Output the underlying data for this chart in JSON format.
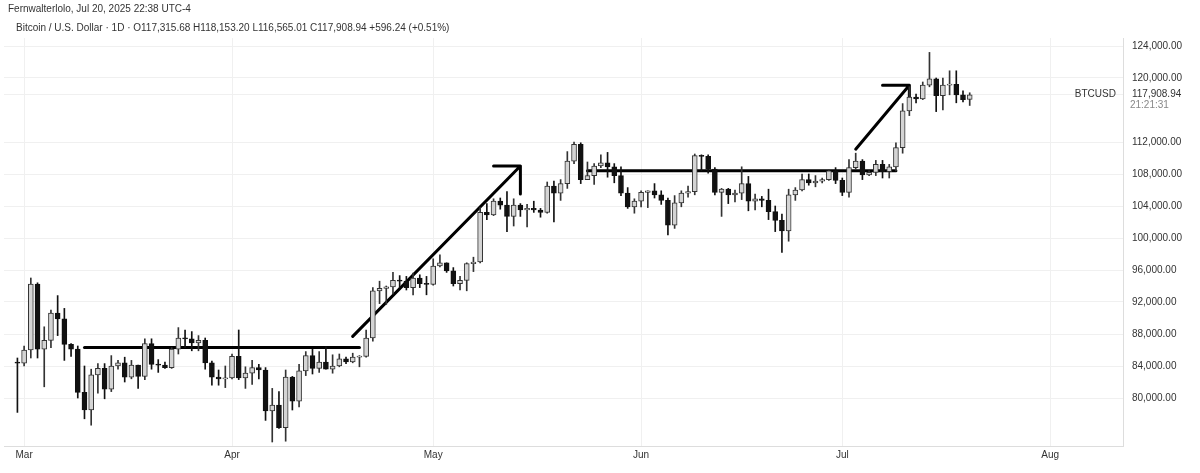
{
  "chart_data": {
    "type": "candlestick",
    "title": "Bitcoin / U.S. Dollar · 1D · O117,315.68 H118,153.20 L116,565.01 C117,908.94 +596.24 (+0.51%)",
    "subtitle": "Fernwalterlolo, Jul 20, 2025 22:38 UTC-4",
    "x": [
      "2025-02-28",
      "2025-03-01",
      "2025-03-02",
      "2025-03-03",
      "2025-03-04",
      "2025-03-05",
      "2025-03-06",
      "2025-03-07",
      "2025-03-08",
      "2025-03-09",
      "2025-03-10",
      "2025-03-11",
      "2025-03-12",
      "2025-03-13",
      "2025-03-14",
      "2025-03-15",
      "2025-03-16",
      "2025-03-17",
      "2025-03-18",
      "2025-03-19",
      "2025-03-20",
      "2025-03-21",
      "2025-03-22",
      "2025-03-23",
      "2025-03-24",
      "2025-03-25",
      "2025-03-26",
      "2025-03-27",
      "2025-03-28",
      "2025-03-29",
      "2025-03-30",
      "2025-03-31",
      "2025-04-01",
      "2025-04-02",
      "2025-04-03",
      "2025-04-04",
      "2025-04-05",
      "2025-04-06",
      "2025-04-07",
      "2025-04-08",
      "2025-04-09",
      "2025-04-10",
      "2025-04-11",
      "2025-04-12",
      "2025-04-13",
      "2025-04-14",
      "2025-04-15",
      "2025-04-16",
      "2025-04-17",
      "2025-04-18",
      "2025-04-19",
      "2025-04-20",
      "2025-04-21",
      "2025-04-22",
      "2025-04-23",
      "2025-04-24",
      "2025-04-25",
      "2025-04-26",
      "2025-04-27",
      "2025-04-28",
      "2025-04-29",
      "2025-04-30",
      "2025-05-01",
      "2025-05-02",
      "2025-05-03",
      "2025-05-04",
      "2025-05-05",
      "2025-05-06",
      "2025-05-07",
      "2025-05-08",
      "2025-05-09",
      "2025-05-10",
      "2025-05-11",
      "2025-05-12",
      "2025-05-13",
      "2025-05-14",
      "2025-05-15",
      "2025-05-16",
      "2025-05-17",
      "2025-05-18",
      "2025-05-19",
      "2025-05-20",
      "2025-05-21",
      "2025-05-22",
      "2025-05-23",
      "2025-05-24",
      "2025-05-25",
      "2025-05-26",
      "2025-05-27",
      "2025-05-28",
      "2025-05-29",
      "2025-05-30",
      "2025-05-31",
      "2025-06-01",
      "2025-06-02",
      "2025-06-03",
      "2025-06-04",
      "2025-06-05",
      "2025-06-06",
      "2025-06-07",
      "2025-06-08",
      "2025-06-09",
      "2025-06-10",
      "2025-06-11",
      "2025-06-12",
      "2025-06-13",
      "2025-06-14",
      "2025-06-15",
      "2025-06-16",
      "2025-06-17",
      "2025-06-18",
      "2025-06-19",
      "2025-06-20",
      "2025-06-21",
      "2025-06-22",
      "2025-06-23",
      "2025-06-24",
      "2025-06-25",
      "2025-06-26",
      "2025-06-27",
      "2025-06-28",
      "2025-06-29",
      "2025-06-30",
      "2025-07-01",
      "2025-07-02",
      "2025-07-03",
      "2025-07-04",
      "2025-07-05",
      "2025-07-06",
      "2025-07-07",
      "2025-07-08",
      "2025-07-09",
      "2025-07-10",
      "2025-07-11",
      "2025-07-12",
      "2025-07-13",
      "2025-07-14",
      "2025-07-15",
      "2025-07-16",
      "2025-07-17",
      "2025-07-18",
      "2025-07-19",
      "2025-07-20"
    ],
    "ohlc": [
      [
        84400,
        85000,
        78200,
        84350
      ],
      [
        84350,
        86500,
        84000,
        86000
      ],
      [
        86000,
        95000,
        85000,
        94250
      ],
      [
        94250,
        94400,
        85000,
        86100
      ],
      [
        86100,
        88900,
        81400,
        87200
      ],
      [
        87200,
        91000,
        86300,
        90600
      ],
      [
        90600,
        92800,
        87800,
        89900
      ],
      [
        89900,
        91200,
        84700,
        86700
      ],
      [
        86700,
        86800,
        85200,
        86100
      ],
      [
        86100,
        86500,
        80000,
        80700
      ],
      [
        80700,
        84000,
        77400,
        78500
      ],
      [
        78500,
        83600,
        76600,
        82900
      ],
      [
        82900,
        84300,
        80600,
        83700
      ],
      [
        83700,
        84300,
        79900,
        81100
      ],
      [
        81100,
        85300,
        80800,
        84000
      ],
      [
        84000,
        84700,
        83600,
        84400
      ],
      [
        84400,
        85100,
        82000,
        82600
      ],
      [
        82600,
        84700,
        82400,
        84100
      ],
      [
        84100,
        84100,
        81200,
        82700
      ],
      [
        82700,
        87400,
        82300,
        86800
      ],
      [
        86800,
        87400,
        83600,
        84200
      ],
      [
        84200,
        84800,
        83200,
        84100
      ],
      [
        84100,
        84500,
        83700,
        83800
      ],
      [
        83800,
        86300,
        83700,
        86100
      ],
      [
        86100,
        88800,
        85500,
        87500
      ],
      [
        87500,
        88500,
        86300,
        87400
      ],
      [
        87400,
        88300,
        85900,
        86900
      ],
      [
        86900,
        87800,
        85900,
        87200
      ],
      [
        87200,
        87500,
        83600,
        84400
      ],
      [
        84400,
        84600,
        81600,
        82600
      ],
      [
        82600,
        83500,
        81600,
        82400
      ],
      [
        82400,
        84000,
        81300,
        82500
      ],
      [
        82500,
        85500,
        82400,
        85200
      ],
      [
        85200,
        88500,
        82300,
        82500
      ],
      [
        82500,
        83900,
        81200,
        83100
      ],
      [
        83100,
        84700,
        81700,
        83800
      ],
      [
        83800,
        84200,
        82400,
        83500
      ],
      [
        83500,
        83800,
        77200,
        78400
      ],
      [
        78400,
        81200,
        74500,
        79100
      ],
      [
        79100,
        80800,
        76200,
        76300
      ],
      [
        76300,
        83500,
        74600,
        82600
      ],
      [
        82600,
        82700,
        78500,
        79600
      ],
      [
        79600,
        84200,
        78900,
        83400
      ],
      [
        83400,
        85800,
        82800,
        85300
      ],
      [
        85300,
        86100,
        83000,
        83700
      ],
      [
        83700,
        85800,
        83200,
        84500
      ],
      [
        84500,
        86400,
        83600,
        83600
      ],
      [
        83600,
        85400,
        83100,
        84000
      ],
      [
        84000,
        85500,
        83900,
        84900
      ],
      [
        84900,
        85100,
        84300,
        84500
      ],
      [
        84500,
        85600,
        84400,
        85100
      ],
      [
        85100,
        85300,
        83900,
        85200
      ],
      [
        85200,
        88500,
        85100,
        87500
      ],
      [
        87500,
        93800,
        87100,
        93400
      ],
      [
        93400,
        94600,
        91800,
        93700
      ],
      [
        93700,
        94000,
        91700,
        93900
      ],
      [
        93900,
        95700,
        93000,
        94700
      ],
      [
        94700,
        95300,
        93800,
        94600
      ],
      [
        94600,
        95200,
        93500,
        93800
      ],
      [
        93800,
        95600,
        92900,
        95000
      ],
      [
        95000,
        95400,
        93800,
        94300
      ],
      [
        94300,
        95200,
        92900,
        94200
      ],
      [
        94200,
        97400,
        94100,
        96500
      ],
      [
        96500,
        97900,
        96400,
        96900
      ],
      [
        96900,
        96900,
        95700,
        95900
      ],
      [
        95900,
        96300,
        94000,
        94300
      ],
      [
        94300,
        95200,
        93500,
        94700
      ],
      [
        94700,
        96900,
        93400,
        96800
      ],
      [
        96800,
        97600,
        95800,
        97000
      ],
      [
        97000,
        103800,
        96900,
        103200
      ],
      [
        103200,
        104300,
        102300,
        102900
      ],
      [
        102900,
        104900,
        102800,
        104600
      ],
      [
        104600,
        105000,
        103600,
        104100
      ],
      [
        104100,
        105800,
        100800,
        102700
      ],
      [
        102700,
        104900,
        101500,
        104100
      ],
      [
        104100,
        104300,
        102700,
        103500
      ],
      [
        103500,
        104200,
        101400,
        103700
      ],
      [
        103700,
        104600,
        103200,
        103500
      ],
      [
        103500,
        103700,
        102600,
        103200
      ],
      [
        103200,
        107000,
        103100,
        106500
      ],
      [
        106500,
        107100,
        102000,
        105600
      ],
      [
        105600,
        107300,
        104700,
        106800
      ],
      [
        106800,
        110800,
        106200,
        109600
      ],
      [
        109600,
        112000,
        109300,
        111700
      ],
      [
        111700,
        111900,
        106800,
        107300
      ],
      [
        107300,
        109500,
        107300,
        107800
      ],
      [
        107800,
        109300,
        106700,
        109000
      ],
      [
        109000,
        110400,
        108800,
        109400
      ],
      [
        109400,
        110700,
        107600,
        108900
      ],
      [
        108900,
        109300,
        106900,
        107800
      ],
      [
        107800,
        108900,
        105300,
        105600
      ],
      [
        105600,
        106300,
        103700,
        103900
      ],
      [
        103900,
        104900,
        103100,
        104600
      ],
      [
        104600,
        105900,
        103900,
        105700
      ],
      [
        105700,
        105900,
        103800,
        105900
      ],
      [
        105900,
        106800,
        105000,
        105400
      ],
      [
        105400,
        105900,
        104200,
        104700
      ],
      [
        104700,
        105000,
        100400,
        101600
      ],
      [
        101600,
        105300,
        101200,
        104400
      ],
      [
        104400,
        105900,
        103900,
        105600
      ],
      [
        105600,
        106500,
        105100,
        105800
      ],
      [
        105800,
        110500,
        105400,
        110300
      ],
      [
        110300,
        110400,
        108400,
        110200
      ],
      [
        110200,
        110400,
        108100,
        108600
      ],
      [
        108600,
        108800,
        105400,
        105700
      ],
      [
        105700,
        106200,
        102700,
        106100
      ],
      [
        106100,
        106200,
        104300,
        105400
      ],
      [
        105400,
        106000,
        104500,
        105600
      ],
      [
        105600,
        108900,
        104800,
        106800
      ],
      [
        106800,
        107700,
        103400,
        104600
      ],
      [
        104600,
        105500,
        103500,
        104900
      ],
      [
        104900,
        105200,
        103900,
        104700
      ],
      [
        104700,
        106100,
        102300,
        103300
      ],
      [
        103300,
        104000,
        100800,
        102200
      ],
      [
        102200,
        103000,
        98200,
        100900
      ],
      [
        100900,
        106100,
        99600,
        105400
      ],
      [
        105400,
        106300,
        104700,
        106000
      ],
      [
        106000,
        108000,
        105900,
        107300
      ],
      [
        107300,
        108000,
        106600,
        106900
      ],
      [
        106900,
        107800,
        106400,
        107100
      ],
      [
        107100,
        107500,
        106900,
        107300
      ],
      [
        107300,
        108500,
        107200,
        108400
      ],
      [
        108400,
        108800,
        106800,
        107200
      ],
      [
        107200,
        107500,
        105300,
        105700
      ],
      [
        105700,
        109800,
        105100,
        108800
      ],
      [
        108800,
        110600,
        108600,
        109600
      ],
      [
        109600,
        109800,
        107300,
        107900
      ],
      [
        107900,
        108400,
        107800,
        108200
      ],
      [
        108200,
        109700,
        107800,
        109200
      ],
      [
        109200,
        109700,
        107500,
        108300
      ],
      [
        108300,
        109200,
        107500,
        108900
      ],
      [
        108900,
        111900,
        108400,
        111300
      ],
      [
        111300,
        116800,
        110600,
        115900
      ],
      [
        115900,
        118900,
        115300,
        117600
      ],
      [
        117600,
        118000,
        116900,
        117400
      ],
      [
        117400,
        119500,
        117300,
        119100
      ],
      [
        119100,
        123200,
        118900,
        119900
      ],
      [
        119900,
        120000,
        115800,
        117800
      ],
      [
        117800,
        120000,
        116000,
        119100
      ],
      [
        119100,
        120900,
        117900,
        119200
      ],
      [
        119200,
        120900,
        116900,
        117900
      ],
      [
        117900,
        118400,
        117000,
        117300
      ],
      [
        117315.68,
        118153.2,
        116565.01,
        117908.94
      ]
    ],
    "series": [
      {
        "type": "line",
        "color": "#000000",
        "x": [
          "2025-03-10",
          "2025-04-20"
        ],
        "values": [
          86300,
          86300
        ]
      },
      {
        "type": "line",
        "color": "#000000",
        "x": [
          "2025-04-19",
          "2025-05-14",
          "2025-05-10",
          "2025-05-14",
          "2025-05-14"
        ],
        "values": [
          87700,
          109000,
          109000,
          109000,
          105500
        ]
      },
      {
        "type": "line",
        "color": "#000000",
        "x": [
          "2025-05-24",
          "2025-07-09"
        ],
        "values": [
          108400,
          108400
        ]
      },
      {
        "type": "line",
        "color": "#000000",
        "x": [
          "2025-07-03",
          "2025-07-11",
          "2025-07-07",
          "2025-07-11",
          "2025-07-11"
        ],
        "values": [
          111100,
          119100,
          119100,
          119100,
          116200
        ]
      }
    ],
    "xlim": [
      "2025-02-26",
      "2025-08-12"
    ],
    "xticks": [
      {
        "value": "2025-03-01",
        "label": "Mar"
      },
      {
        "value": "2025-04-01",
        "label": "Apr"
      },
      {
        "value": "2025-05-01",
        "label": "May"
      },
      {
        "value": "2025-06-01",
        "label": "Jun"
      },
      {
        "value": "2025-07-01",
        "label": "Jul"
      },
      {
        "value": "2025-08-01",
        "label": "Aug"
      }
    ],
    "ylim": [
      74000,
      125000
    ],
    "yticks": [
      {
        "value": 80000,
        "label": "80,000.00"
      },
      {
        "value": 84000,
        "label": "84,000.00"
      },
      {
        "value": 88000,
        "label": "88,000.00"
      },
      {
        "value": 92000,
        "label": "92,000.00"
      },
      {
        "value": 96000,
        "label": "96,000.00"
      },
      {
        "value": 100000,
        "label": "100,000.00"
      },
      {
        "value": 104000,
        "label": "104,000.00"
      },
      {
        "value": 108000,
        "label": "108,000.00"
      },
      {
        "value": 112000,
        "label": "112,000.00"
      },
      {
        "value": 117908.94,
        "label": "117,908.94"
      },
      {
        "value": 120000,
        "label": "120,000.00"
      },
      {
        "value": 124000,
        "label": "124,000.00"
      }
    ],
    "annotations": [
      "BTCUSD",
      "21:21:31"
    ],
    "grid": true,
    "legend": false
  }
}
